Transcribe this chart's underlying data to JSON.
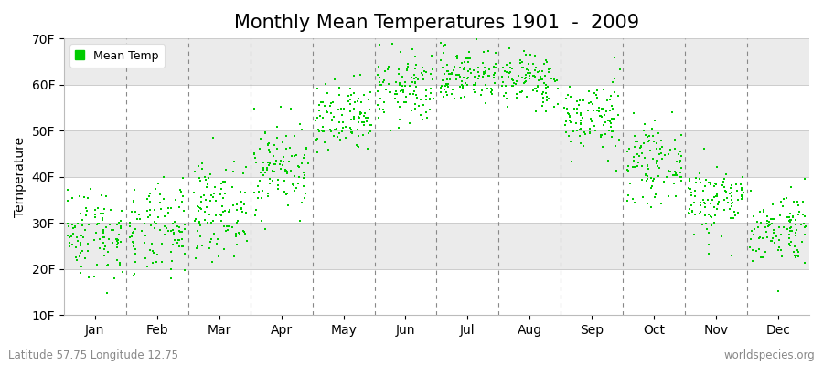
{
  "title": "Monthly Mean Temperatures 1901  -  2009",
  "ylabel": "Temperature",
  "ylim": [
    10,
    70
  ],
  "yticks": [
    10,
    20,
    30,
    40,
    50,
    60,
    70
  ],
  "ytick_labels": [
    "10F",
    "20F",
    "30F",
    "40F",
    "50F",
    "60F",
    "70F"
  ],
  "months": [
    "Jan",
    "Feb",
    "Mar",
    "Apr",
    "May",
    "Jun",
    "Jul",
    "Aug",
    "Sep",
    "Oct",
    "Nov",
    "Dec"
  ],
  "monthly_means_F": [
    28,
    28,
    33,
    42,
    52,
    59,
    62,
    61,
    53,
    43,
    35,
    29
  ],
  "monthly_std_F": [
    5,
    5,
    5,
    5,
    4,
    4,
    3,
    3,
    4,
    4,
    4,
    4
  ],
  "n_years": 109,
  "dot_color": "#00cc00",
  "dot_size": 3,
  "legend_label": "Mean Temp",
  "footer_left": "Latitude 57.75 Longitude 12.75",
  "footer_right": "worldspecies.org",
  "fig_bg_color": "#ffffff",
  "plot_bg_color": "#ffffff",
  "band_colors": [
    "#ffffff",
    "#ebebeb"
  ],
  "vline_color": "#888888",
  "hline_color": "#cccccc",
  "title_fontsize": 15,
  "axis_fontsize": 10,
  "footer_fontsize": 8.5
}
